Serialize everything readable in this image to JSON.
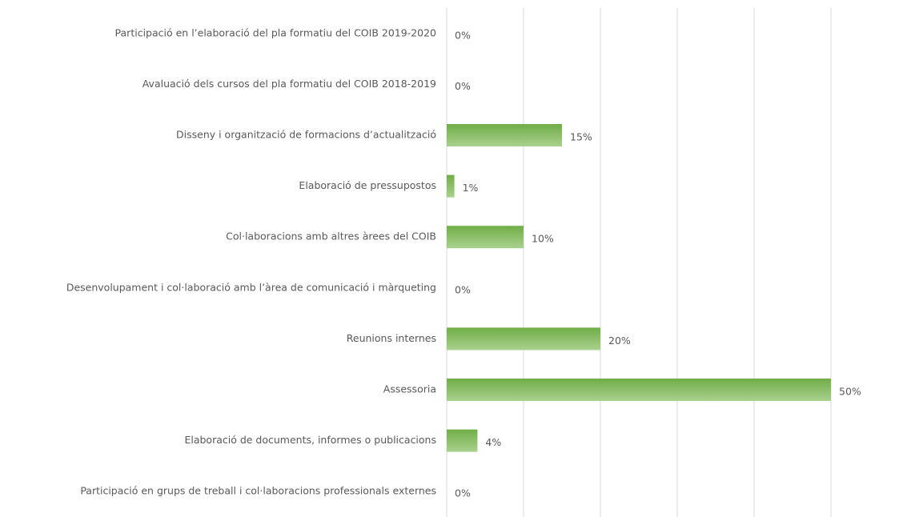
{
  "chart_data": {
    "type": "bar",
    "orientation": "horizontal",
    "categories": [
      "Participació en l’elaboració del pla formatiu del COIB 2019-2020",
      "Avaluació dels cursos del pla formatiu del COIB 2018-2019",
      "Disseny i organització de formacions d’actualització",
      "Elaboració de pressupostos",
      "Col·laboracions amb altres àrees del COIB",
      "Desenvolupament i col·laboració amb l’àrea de comunicació i màrqueting",
      "Reunions internes",
      "Assessoria",
      "Elaboració de documents, informes o publicacions",
      "Participació en grups de treball i col·laboracions professionals externes"
    ],
    "values": [
      0,
      0,
      15,
      1,
      10,
      0,
      20,
      50,
      4,
      0
    ],
    "value_labels": [
      "0%",
      "0%",
      "15%",
      "1%",
      "10%",
      "0%",
      "20%",
      "50%",
      "4%",
      "0%"
    ],
    "color": "#70ad47",
    "xlim": [
      0,
      50
    ],
    "xticks": [
      0,
      10,
      20,
      30,
      40,
      50
    ],
    "grid": true
  }
}
